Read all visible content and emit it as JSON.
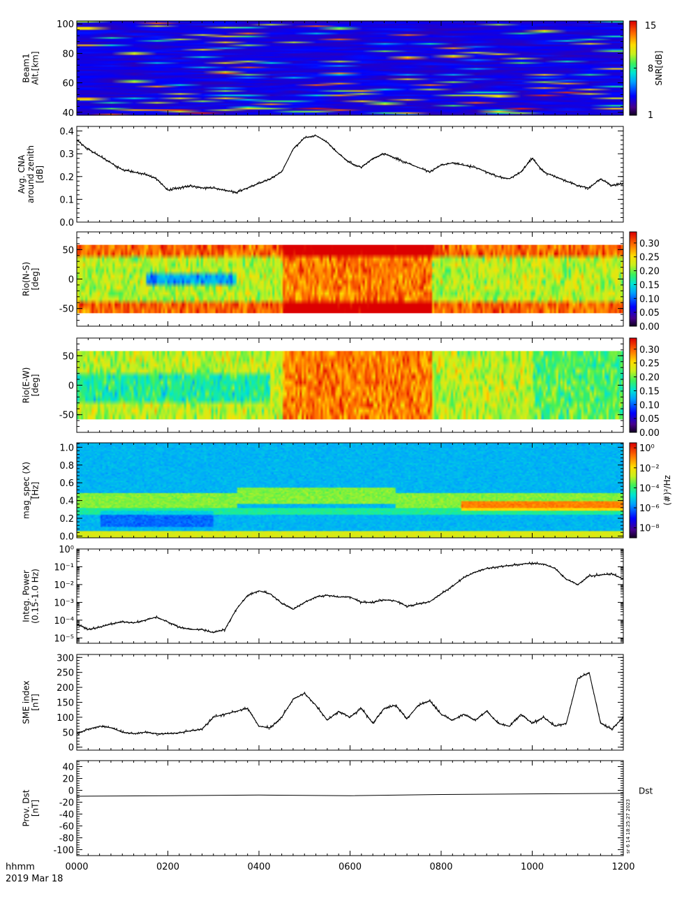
{
  "chart_data": [
    {
      "type": "heatmap",
      "ylabel_lines": [
        "Beam1",
        "Alt.[km]"
      ],
      "ylim": [
        38,
        102
      ],
      "yticks": [
        "40",
        "60",
        "80",
        "100"
      ],
      "ytick_values": [
        40,
        60,
        80,
        100
      ],
      "colorbar": {
        "label": "SNR[dB]",
        "range": [
          1,
          15
        ],
        "ticks": [
          "1",
          "8",
          "15"
        ],
        "tick_values": [
          1,
          8,
          15
        ]
      }
    },
    {
      "type": "line",
      "ylabel_lines": [
        "Avg. CNA",
        "around zenith",
        "[dB]"
      ],
      "ylim": [
        0.0,
        0.42
      ],
      "yticks": [
        "0.0",
        "0.1",
        "0.2",
        "0.3",
        "0.4"
      ],
      "ytick_values": [
        0.0,
        0.1,
        0.2,
        0.3,
        0.4
      ],
      "x_hours": [
        0,
        0.25,
        0.5,
        0.75,
        1,
        1.25,
        1.5,
        1.75,
        2,
        2.25,
        2.5,
        2.75,
        3,
        3.25,
        3.5,
        3.75,
        4,
        4.25,
        4.5,
        4.75,
        5,
        5.25,
        5.5,
        5.75,
        6,
        6.25,
        6.5,
        6.75,
        7,
        7.25,
        7.5,
        7.75,
        8,
        8.25,
        8.5,
        8.75,
        9,
        9.25,
        9.5,
        9.75,
        10,
        10.25,
        10.5,
        10.75,
        11,
        11.25,
        11.5,
        11.75,
        12
      ],
      "values": [
        0.36,
        0.32,
        0.29,
        0.26,
        0.23,
        0.22,
        0.21,
        0.19,
        0.14,
        0.15,
        0.16,
        0.15,
        0.15,
        0.14,
        0.13,
        0.15,
        0.17,
        0.19,
        0.22,
        0.32,
        0.37,
        0.38,
        0.35,
        0.3,
        0.26,
        0.24,
        0.28,
        0.3,
        0.28,
        0.26,
        0.24,
        0.22,
        0.25,
        0.26,
        0.25,
        0.24,
        0.22,
        0.2,
        0.19,
        0.22,
        0.28,
        0.22,
        0.2,
        0.18,
        0.16,
        0.15,
        0.19,
        0.16,
        0.17
      ]
    },
    {
      "type": "heatmap",
      "ylabel_lines": [
        "Rio(N-S)",
        "[deg]"
      ],
      "ylim": [
        -80,
        80
      ],
      "yticks": [
        "-50",
        "0",
        "50"
      ],
      "ytick_values": [
        -50,
        0,
        50
      ],
      "colorbar": {
        "range": [
          0,
          0.34
        ],
        "ticks": [
          "0.00",
          "0.05",
          "0.10",
          "0.15",
          "0.20",
          "0.25",
          "0.30"
        ],
        "tick_values": [
          0,
          0.05,
          0.1,
          0.15,
          0.2,
          0.25,
          0.3
        ]
      }
    },
    {
      "type": "heatmap",
      "ylabel_lines": [
        "Rio(E-W)",
        "[deg]"
      ],
      "ylim": [
        -80,
        80
      ],
      "yticks": [
        "-50",
        "0",
        "50"
      ],
      "ytick_values": [
        -50,
        0,
        50
      ],
      "colorbar": {
        "range": [
          0,
          0.34
        ],
        "ticks": [
          "0.00",
          "0.05",
          "0.10",
          "0.15",
          "0.20",
          "0.25",
          "0.30"
        ],
        "tick_values": [
          0,
          0.05,
          0.1,
          0.15,
          0.2,
          0.25,
          0.3
        ]
      }
    },
    {
      "type": "heatmap",
      "ylabel_lines": [
        "mag_spec (X)",
        "[Hz]"
      ],
      "ylim": [
        -0.02,
        1.05
      ],
      "yticks": [
        "0.0",
        "0.2",
        "0.4",
        "0.6",
        "0.8",
        "1.0"
      ],
      "ytick_values": [
        0.0,
        0.2,
        0.4,
        0.6,
        0.8,
        1.0
      ],
      "colorbar": {
        "label": "(#)²/Hz",
        "log_range": [
          -9,
          0.5
        ],
        "ticks": [
          "10⁰",
          "10⁻²",
          "10⁻⁴",
          "10⁻⁶",
          "10⁻⁸"
        ],
        "tick_exponents": [
          0,
          -2,
          -4,
          -6,
          -8
        ]
      }
    },
    {
      "type": "line",
      "ylabel_lines": [
        "Integ. Power",
        "(0.15-1.0 Hz)"
      ],
      "yscale": "log",
      "log_ylim": [
        -5.3,
        0
      ],
      "yticks": [
        "10⁻⁵",
        "10⁻⁴",
        "10⁻³",
        "10⁻²",
        "10⁻¹",
        "10⁰"
      ],
      "ytick_exponents": [
        -5,
        -4,
        -3,
        -2,
        -1,
        0
      ],
      "x_hours": [
        0,
        0.25,
        0.5,
        0.75,
        1,
        1.25,
        1.5,
        1.75,
        2,
        2.25,
        2.5,
        2.75,
        3,
        3.25,
        3.5,
        3.75,
        4,
        4.25,
        4.5,
        4.75,
        5,
        5.25,
        5.5,
        5.75,
        6,
        6.25,
        6.5,
        6.75,
        7,
        7.25,
        7.5,
        7.75,
        8,
        8.25,
        8.5,
        8.75,
        9,
        9.25,
        9.5,
        9.75,
        10,
        10.25,
        10.5,
        10.75,
        11,
        11.25,
        11.5,
        11.75,
        12
      ],
      "values": [
        6e-05,
        3e-05,
        4e-05,
        6e-05,
        8e-05,
        7e-05,
        0.0001,
        0.00015,
        8e-05,
        4e-05,
        3e-05,
        3e-05,
        2e-05,
        3e-05,
        0.0004,
        0.0025,
        0.0045,
        0.003,
        0.0009,
        0.0004,
        0.001,
        0.002,
        0.0025,
        0.002,
        0.002,
        0.001,
        0.001,
        0.0014,
        0.0012,
        0.0006,
        0.0008,
        0.0011,
        0.003,
        0.008,
        0.025,
        0.05,
        0.08,
        0.1,
        0.12,
        0.14,
        0.16,
        0.14,
        0.08,
        0.02,
        0.01,
        0.03,
        0.035,
        0.04,
        0.02
      ]
    },
    {
      "type": "line",
      "ylabel_lines": [
        "SME index",
        "[nT]"
      ],
      "ylim": [
        -10,
        310
      ],
      "yticks": [
        "0",
        "50",
        "100",
        "150",
        "200",
        "250",
        "300"
      ],
      "ytick_values": [
        0,
        50,
        100,
        150,
        200,
        250,
        300
      ],
      "x_hours": [
        0,
        0.25,
        0.5,
        0.75,
        1,
        1.25,
        1.5,
        1.75,
        2,
        2.25,
        2.5,
        2.75,
        3,
        3.25,
        3.5,
        3.75,
        4,
        4.25,
        4.5,
        4.75,
        5,
        5.25,
        5.5,
        5.75,
        6,
        6.25,
        6.5,
        6.75,
        7,
        7.25,
        7.5,
        7.75,
        8,
        8.25,
        8.5,
        8.75,
        9,
        9.25,
        9.5,
        9.75,
        10,
        10.25,
        10.5,
        10.75,
        11,
        11.25,
        11.5,
        11.75,
        12
      ],
      "values": [
        45,
        60,
        70,
        65,
        50,
        45,
        50,
        45,
        45,
        48,
        55,
        60,
        100,
        110,
        120,
        130,
        70,
        65,
        100,
        160,
        180,
        140,
        90,
        120,
        100,
        130,
        80,
        130,
        140,
        95,
        140,
        155,
        110,
        90,
        110,
        90,
        120,
        80,
        70,
        110,
        80,
        100,
        70,
        80,
        230,
        250,
        80,
        60,
        100
      ]
    },
    {
      "type": "line",
      "ylabel_lines": [
        "Prov. Dst",
        "[nT]"
      ],
      "ylim": [
        -110,
        50
      ],
      "yticks": [
        "-100",
        "-80",
        "-60",
        "-40",
        "-20",
        "0",
        "20",
        "40"
      ],
      "ytick_values": [
        -100,
        -80,
        -60,
        -40,
        -20,
        0,
        20,
        40
      ],
      "x_hours": [
        0,
        2,
        4,
        6,
        8,
        10,
        12
      ],
      "values": [
        -10,
        -9,
        -8,
        -9,
        -7,
        -6,
        -5
      ],
      "right_label": "Dst",
      "stamp": "sr  6 14 18:25:27 2023"
    }
  ],
  "xaxis": {
    "range_hours": [
      0,
      12
    ],
    "tick_labels": [
      "0000",
      "0200",
      "0400",
      "0600",
      "0800",
      "1000",
      "1200"
    ],
    "tick_hours": [
      0,
      2,
      4,
      6,
      8,
      10,
      12
    ],
    "label": "hhmm",
    "date": "2019 Mar 18"
  }
}
